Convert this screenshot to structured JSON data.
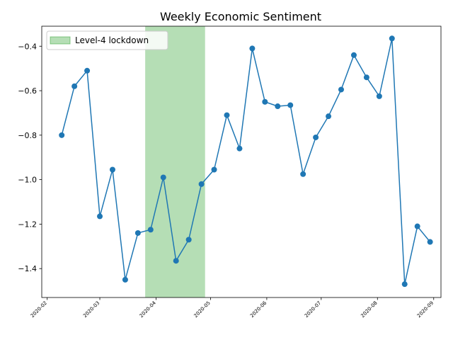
{
  "chart_data": {
    "type": "line",
    "title": "Weekly Economic Sentiment",
    "xlabel": "",
    "ylabel": "",
    "x_type": "date",
    "xlim": [
      "2020-01-29",
      "2020-09-05"
    ],
    "ylim": [
      -1.53,
      -0.31
    ],
    "x_ticks": [
      "2020-02-01",
      "2020-03-01",
      "2020-04-01",
      "2020-05-01",
      "2020-06-01",
      "2020-07-01",
      "2020-08-01",
      "2020-09-01"
    ],
    "x_tick_labels": [
      "2020-02",
      "2020-03",
      "2020-04",
      "2020-05",
      "2020-06",
      "2020-07",
      "2020-08",
      "2020-09"
    ],
    "y_ticks": [
      -1.4,
      -1.2,
      -1.0,
      -0.8,
      -0.6,
      -0.4
    ],
    "y_tick_labels": [
      "−1.4",
      "−1.2",
      "−1.0",
      "−0.8",
      "−0.6",
      "−0.4"
    ],
    "grid": false,
    "legend_position": "top-left",
    "series": [
      {
        "color": "#1f77b4",
        "marker": "circle",
        "x": [
          "2020-02-09",
          "2020-02-16",
          "2020-02-23",
          "2020-03-01",
          "2020-03-08",
          "2020-03-15",
          "2020-03-22",
          "2020-03-29",
          "2020-04-05",
          "2020-04-12",
          "2020-04-19",
          "2020-04-26",
          "2020-05-03",
          "2020-05-10",
          "2020-05-17",
          "2020-05-24",
          "2020-05-31",
          "2020-06-07",
          "2020-06-14",
          "2020-06-21",
          "2020-06-28",
          "2020-07-05",
          "2020-07-12",
          "2020-07-19",
          "2020-07-26",
          "2020-08-02",
          "2020-08-09",
          "2020-08-16",
          "2020-08-23",
          "2020-08-30"
        ],
        "values": [
          -0.8,
          -0.58,
          -0.51,
          -1.165,
          -0.955,
          -1.45,
          -1.24,
          -1.225,
          -0.99,
          -1.365,
          -1.27,
          -1.02,
          -0.955,
          -0.71,
          -0.86,
          -0.41,
          -0.65,
          -0.67,
          -0.665,
          -0.975,
          -0.81,
          -0.715,
          -0.595,
          -0.44,
          -0.54,
          -0.625,
          -0.365,
          -1.47,
          -1.21,
          -1.28
        ]
      }
    ],
    "shaded_regions": [
      {
        "label": "Level-4 lockdown",
        "start": "2020-03-26",
        "end": "2020-04-28",
        "color": "#2ca02c",
        "alpha": 0.35
      }
    ]
  }
}
